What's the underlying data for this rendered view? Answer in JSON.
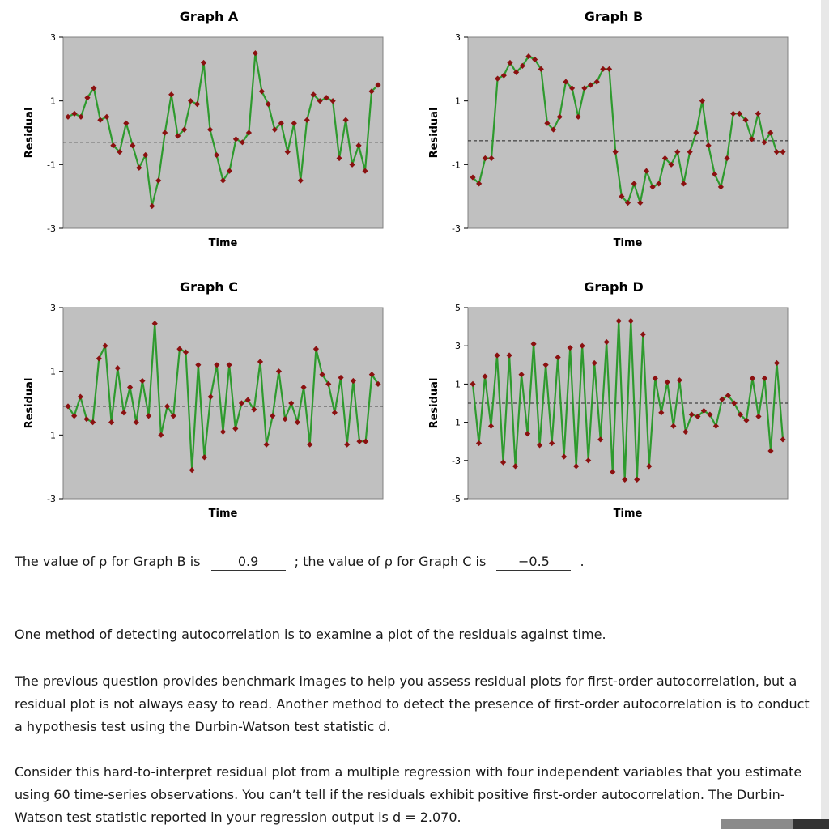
{
  "chart_data": [
    {
      "type": "line",
      "title": "Graph A",
      "xlabel": "Time",
      "ylabel": "Residual",
      "ylim": [
        -3,
        3
      ],
      "yticks": [
        "3",
        "1",
        "-1",
        "-3"
      ],
      "background": "#c0c0c0",
      "line_color": "#2e9a2e",
      "marker_color": "#8b1010",
      "baseline": -0.3,
      "values": [
        0.5,
        0.6,
        0.5,
        1.1,
        1.4,
        0.4,
        0.5,
        -0.4,
        -0.6,
        0.3,
        -0.4,
        -1.1,
        -0.7,
        -2.3,
        -1.5,
        0.0,
        1.2,
        -0.1,
        0.1,
        1.0,
        0.9,
        2.2,
        0.1,
        -0.7,
        -1.5,
        -1.2,
        -0.2,
        -0.3,
        0.0,
        2.5,
        1.3,
        0.9,
        0.1,
        0.3,
        -0.6,
        0.3,
        -1.5,
        0.4,
        1.2,
        1.0,
        1.1,
        1.0,
        -0.8,
        0.4,
        -1.0,
        -0.4,
        -1.2,
        1.3,
        1.5
      ]
    },
    {
      "type": "line",
      "title": "Graph B",
      "xlabel": "Time",
      "ylabel": "Residual",
      "ylim": [
        -3,
        3
      ],
      "yticks": [
        "3",
        "1",
        "-1",
        "-3"
      ],
      "background": "#c0c0c0",
      "line_color": "#2e9a2e",
      "marker_color": "#8b1010",
      "baseline": -0.25,
      "values": [
        -1.4,
        -1.6,
        -0.8,
        -0.8,
        1.7,
        1.8,
        2.2,
        1.9,
        2.1,
        2.4,
        2.3,
        2.0,
        0.3,
        0.1,
        0.5,
        1.6,
        1.4,
        0.5,
        1.4,
        1.5,
        1.6,
        2.0,
        2.0,
        -0.6,
        -2.0,
        -2.2,
        -1.6,
        -2.2,
        -1.2,
        -1.7,
        -1.6,
        -0.8,
        -1.0,
        -0.6,
        -1.6,
        -0.6,
        0.0,
        1.0,
        -0.4,
        -1.3,
        -1.7,
        -0.8,
        0.6,
        0.6,
        0.4,
        -0.2,
        0.6,
        -0.3,
        0.0,
        -0.6,
        -0.6
      ]
    },
    {
      "type": "line",
      "title": "Graph C",
      "xlabel": "Time",
      "ylabel": "Residual",
      "ylim": [
        -3,
        3
      ],
      "yticks": [
        "3",
        "1",
        "-1",
        "-3"
      ],
      "background": "#c0c0c0",
      "line_color": "#2e9a2e",
      "marker_color": "#8b1010",
      "baseline": -0.1,
      "values": [
        -0.1,
        -0.4,
        0.2,
        -0.5,
        -0.6,
        1.4,
        1.8,
        -0.6,
        1.1,
        -0.3,
        0.5,
        -0.6,
        0.7,
        -0.4,
        2.5,
        -1.0,
        -0.1,
        -0.4,
        1.7,
        1.6,
        -2.1,
        1.2,
        -1.7,
        0.2,
        1.2,
        -0.9,
        1.2,
        -0.8,
        0.0,
        0.1,
        -0.2,
        1.3,
        -1.3,
        -0.4,
        1.0,
        -0.5,
        0.0,
        -0.6,
        0.5,
        -1.3,
        1.7,
        0.9,
        0.6,
        -0.3,
        0.8,
        -1.3,
        0.7,
        -1.2,
        -1.2,
        0.9,
        0.6
      ]
    },
    {
      "type": "line",
      "title": "Graph D",
      "xlabel": "Time",
      "ylabel": "Residual",
      "ylim": [
        -5,
        5
      ],
      "yticks": [
        "5",
        "3",
        "1",
        "-1",
        "-3",
        "-5"
      ],
      "background": "#c0c0c0",
      "line_color": "#2e9a2e",
      "marker_color": "#8b1010",
      "baseline": 0,
      "values": [
        1.0,
        -2.1,
        1.4,
        -1.2,
        2.5,
        -3.1,
        2.5,
        -3.3,
        1.5,
        -1.6,
        3.1,
        -2.2,
        2.0,
        -2.1,
        2.4,
        -2.8,
        2.9,
        -3.3,
        3.0,
        -3.0,
        2.1,
        -1.9,
        3.2,
        -3.6,
        4.3,
        -4.0,
        4.3,
        -4.0,
        3.6,
        -3.3,
        1.3,
        -0.5,
        1.1,
        -1.2,
        1.2,
        -1.5,
        -0.6,
        -0.7,
        -0.4,
        -0.6,
        -1.2,
        0.2,
        0.4,
        0.0,
        -0.6,
        -0.9,
        1.3,
        -0.7,
        1.3,
        -2.5,
        2.1,
        -1.9
      ]
    }
  ],
  "question": {
    "part1": "The value of ρ for Graph B is",
    "answer_b": "0.9",
    "part2": "; the value of ρ for Graph C is",
    "answer_c": "−0.5",
    "end": "."
  },
  "paragraphs": [
    "One method of detecting autocorrelation is to examine a plot of the residuals against time.",
    "The previous question provides benchmark images to help you assess residual plots for first-order autocorrelation, but a residual plot is not always easy to read. Another method to detect the presence of first-order autocorrelation is to conduct a hypothesis test using the Durbin-Watson test statistic d.",
    "Consider this hard-to-interpret residual plot from a multiple regression with four independent variables that you estimate using 60 time-series observations. You can’t tell if the residuals exhibit positive first-order autocorrelation. The Durbin-Watson test statistic reported in your regression output is d = 2.070."
  ]
}
